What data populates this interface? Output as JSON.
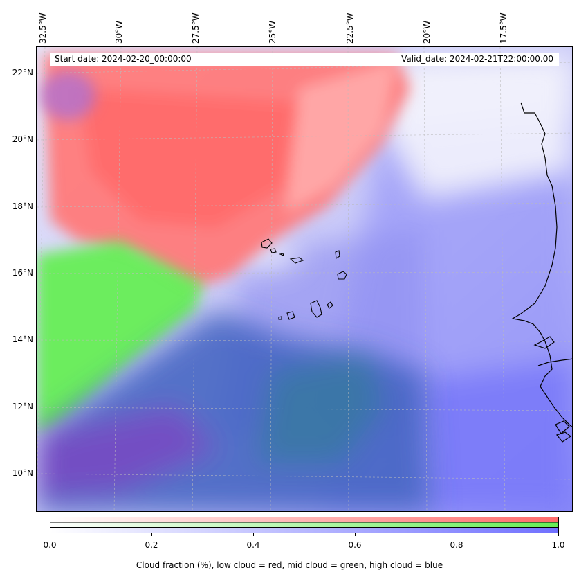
{
  "map": {
    "title_start": "Start date: 2024-02-20_00:00:00",
    "title_valid": "Valid_date: 2024-02-21T22:00:00.00",
    "lon_labels": [
      "32.5°W",
      "30°W",
      "27.5°W",
      "25°W",
      "22.5°W",
      "20°W",
      "17.5°W"
    ],
    "lat_labels": [
      "22°N",
      "20°N",
      "18°N",
      "16°N",
      "14°N",
      "12°N",
      "10°N"
    ],
    "gridlines": true,
    "layers": {
      "low_cloud_color": "#ff7070",
      "mid_cloud_color": "#66ee55",
      "high_cloud_color": "#7070ff"
    }
  },
  "colorbar": {
    "ticks": [
      "0.0",
      "0.2",
      "0.4",
      "0.6",
      "0.8",
      "1.0"
    ],
    "label": "Cloud fraction (%), low cloud = red, mid cloud = green, high cloud = blue",
    "colors": [
      "#ff6b6b",
      "#66ee55",
      "#7070ff"
    ]
  }
}
